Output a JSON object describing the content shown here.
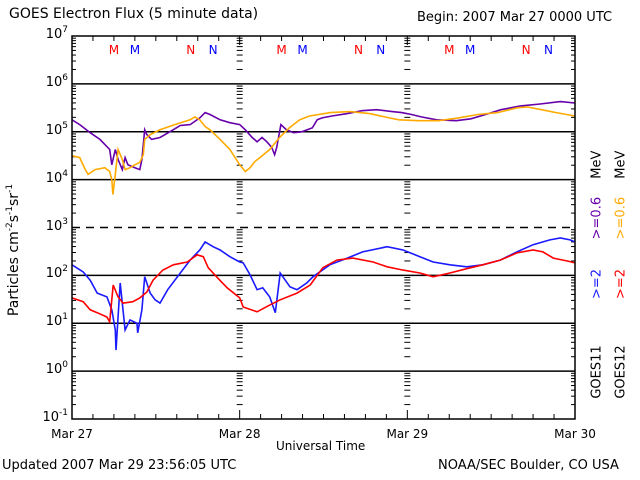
{
  "header": {
    "title": "GOES Electron Flux (5 minute data)",
    "begin": "Begin: 2007 Mar 27 0000 UTC"
  },
  "footer": {
    "updated": "Updated 2007 Mar 29 23:56:05 UTC",
    "credit": "NOAA/SEC Boulder, CO USA"
  },
  "colors": {
    "goes11_high": "#1a1aff",
    "goes12_high": "#ff0000",
    "goes11_low": "#6600aa",
    "goes12_low": "#ffaa00",
    "marker_red": "#ff0000",
    "marker_blue": "#0000ff"
  },
  "chart_data": {
    "type": "line",
    "title": "GOES Electron Flux (5 minute data)",
    "xlabel": "Universal Time",
    "ylabel_parts": [
      "Particles cm",
      "-2",
      "s",
      "-1",
      "sr",
      "-1"
    ],
    "x_units": "hours since 2007 Mar 27 0000 UTC",
    "xlim": [
      0,
      72
    ],
    "x_ticks": [
      {
        "value": 0,
        "label": "Mar 27"
      },
      {
        "value": 24,
        "label": "Mar 28"
      },
      {
        "value": 48,
        "label": "Mar 29"
      },
      {
        "value": 72,
        "label": "Mar 30"
      }
    ],
    "x_minor_step_hours": 3,
    "y_scale": "log",
    "ylim_log10": [
      -1,
      7
    ],
    "y_ticks": [
      {
        "exp": 7,
        "base": "10",
        "sup": "7"
      },
      {
        "exp": 6,
        "base": "10",
        "sup": "6"
      },
      {
        "exp": 5,
        "base": "10",
        "sup": "5"
      },
      {
        "exp": 4,
        "base": "10",
        "sup": "4"
      },
      {
        "exp": 3,
        "base": "10",
        "sup": "3"
      },
      {
        "exp": 2,
        "base": "10",
        "sup": "2"
      },
      {
        "exp": 1,
        "base": "10",
        "sup": "1"
      },
      {
        "exp": 0,
        "base": "10",
        "sup": "0"
      },
      {
        "exp": -1,
        "base": "10",
        "sup": "-1"
      }
    ],
    "grid_solid_log10": [
      6,
      5,
      4,
      2,
      1,
      0
    ],
    "threshold_dashed_log10": 3,
    "markers": [
      {
        "hour": 6.0,
        "label": "M",
        "color": "red"
      },
      {
        "hour": 9.0,
        "label": "M",
        "color": "blue"
      },
      {
        "hour": 17.0,
        "label": "N",
        "color": "red"
      },
      {
        "hour": 20.2,
        "label": "N",
        "color": "blue"
      },
      {
        "hour": 30.0,
        "label": "M",
        "color": "red"
      },
      {
        "hour": 33.0,
        "label": "M",
        "color": "blue"
      },
      {
        "hour": 41.0,
        "label": "N",
        "color": "red"
      },
      {
        "hour": 44.2,
        "label": "N",
        "color": "blue"
      },
      {
        "hour": 54.0,
        "label": "M",
        "color": "red"
      },
      {
        "hour": 57.0,
        "label": "M",
        "color": "blue"
      },
      {
        "hour": 65.0,
        "label": "N",
        "color": "red"
      },
      {
        "hour": 68.2,
        "label": "N",
        "color": "blue"
      }
    ],
    "legend": {
      "placement": "right-vertical",
      "column1": {
        "satellite": "GOES11",
        "high": ">=2",
        "low": ">=0.6",
        "unit": "MeV"
      },
      "column2": {
        "satellite": "GOES12",
        "high": ">=2",
        "low": ">=0.6",
        "unit": "MeV"
      }
    },
    "series": [
      {
        "name": "GOES11 >=0.6 MeV",
        "color_key": "goes11_low",
        "points_log10": [
          [
            0,
            5.25
          ],
          [
            1.1,
            5.15
          ],
          [
            2.6,
            4.98
          ],
          [
            4.0,
            4.84
          ],
          [
            5.4,
            4.63
          ],
          [
            5.7,
            4.31
          ],
          [
            6.2,
            4.63
          ],
          [
            6.6,
            4.42
          ],
          [
            7.2,
            4.21
          ],
          [
            7.6,
            4.46
          ],
          [
            8.0,
            4.31
          ],
          [
            9.0,
            4.25
          ],
          [
            9.7,
            4.21
          ],
          [
            10.0,
            4.42
          ],
          [
            10.4,
            5.04
          ],
          [
            10.7,
            4.94
          ],
          [
            11.4,
            4.84
          ],
          [
            12.6,
            4.88
          ],
          [
            14.0,
            5.0
          ],
          [
            15.5,
            5.13
          ],
          [
            16.9,
            5.15
          ],
          [
            18.3,
            5.29
          ],
          [
            19.05,
            5.4
          ],
          [
            19.75,
            5.36
          ],
          [
            21.2,
            5.25
          ],
          [
            22.6,
            5.19
          ],
          [
            24.0,
            5.15
          ],
          [
            24.8,
            5.04
          ],
          [
            25.8,
            4.88
          ],
          [
            26.5,
            4.79
          ],
          [
            27.2,
            4.88
          ],
          [
            27.9,
            4.79
          ],
          [
            28.6,
            4.67
          ],
          [
            29.0,
            4.52
          ],
          [
            29.3,
            4.67
          ],
          [
            29.9,
            5.15
          ],
          [
            30.7,
            5.04
          ],
          [
            31.7,
            4.98
          ],
          [
            32.9,
            5.0
          ],
          [
            34.4,
            5.08
          ],
          [
            35.1,
            5.25
          ],
          [
            35.8,
            5.29
          ],
          [
            37.2,
            5.33
          ],
          [
            39.4,
            5.38
          ],
          [
            41.5,
            5.44
          ],
          [
            43.6,
            5.46
          ],
          [
            45.8,
            5.42
          ],
          [
            47.2,
            5.4
          ],
          [
            48.6,
            5.36
          ],
          [
            50.0,
            5.31
          ],
          [
            52.2,
            5.25
          ],
          [
            55.0,
            5.23
          ],
          [
            57.1,
            5.27
          ],
          [
            59.2,
            5.36
          ],
          [
            61.4,
            5.46
          ],
          [
            64.2,
            5.54
          ],
          [
            67.0,
            5.58
          ],
          [
            69.9,
            5.63
          ],
          [
            72,
            5.6
          ]
        ]
      },
      {
        "name": "GOES12 >=0.6 MeV",
        "color_key": "goes12_low",
        "points_log10": [
          [
            0,
            4.5
          ],
          [
            1.1,
            4.46
          ],
          [
            1.9,
            4.21
          ],
          [
            2.3,
            4.11
          ],
          [
            3.3,
            4.21
          ],
          [
            4.7,
            4.25
          ],
          [
            5.4,
            4.17
          ],
          [
            5.7,
            4.0
          ],
          [
            5.85,
            3.69
          ],
          [
            6.2,
            4.11
          ],
          [
            6.6,
            4.63
          ],
          [
            7.2,
            4.42
          ],
          [
            7.6,
            4.21
          ],
          [
            8.3,
            4.25
          ],
          [
            9.0,
            4.31
          ],
          [
            9.7,
            4.36
          ],
          [
            10.2,
            4.52
          ],
          [
            10.4,
            4.84
          ],
          [
            11.2,
            4.94
          ],
          [
            12.6,
            5.04
          ],
          [
            14.7,
            5.15
          ],
          [
            16.9,
            5.25
          ],
          [
            17.6,
            5.31
          ],
          [
            18.3,
            5.25
          ],
          [
            19.05,
            5.11
          ],
          [
            19.75,
            5.04
          ],
          [
            21.2,
            4.84
          ],
          [
            22.6,
            4.63
          ],
          [
            24.0,
            4.31
          ],
          [
            24.8,
            4.17
          ],
          [
            25.5,
            4.25
          ],
          [
            26.2,
            4.38
          ],
          [
            26.9,
            4.46
          ],
          [
            28.3,
            4.63
          ],
          [
            29.7,
            4.88
          ],
          [
            31.1,
            5.08
          ],
          [
            32.6,
            5.25
          ],
          [
            34.0,
            5.33
          ],
          [
            37.0,
            5.4
          ],
          [
            39.8,
            5.42
          ],
          [
            42.6,
            5.38
          ],
          [
            45.4,
            5.29
          ],
          [
            46.8,
            5.25
          ],
          [
            49.6,
            5.23
          ],
          [
            52.5,
            5.23
          ],
          [
            55.3,
            5.29
          ],
          [
            58.1,
            5.36
          ],
          [
            60.9,
            5.4
          ],
          [
            63.7,
            5.5
          ],
          [
            65.1,
            5.52
          ],
          [
            67.2,
            5.46
          ],
          [
            69.3,
            5.4
          ],
          [
            72,
            5.33
          ]
        ]
      },
      {
        "name": "GOES11 >=2 MeV",
        "color_key": "goes11_high",
        "points_log10": [
          [
            0,
            2.22
          ],
          [
            1.6,
            2.07
          ],
          [
            2.6,
            1.9
          ],
          [
            3.6,
            1.63
          ],
          [
            5.0,
            1.55
          ],
          [
            5.7,
            1.28
          ],
          [
            6.2,
            0.86
          ],
          [
            6.3,
            0.44
          ],
          [
            6.9,
            1.84
          ],
          [
            7.6,
            0.86
          ],
          [
            8.3,
            1.07
          ],
          [
            9.3,
            1.0
          ],
          [
            9.4,
            0.8
          ],
          [
            10.0,
            1.28
          ],
          [
            10.4,
            1.97
          ],
          [
            11.2,
            1.63
          ],
          [
            11.9,
            1.49
          ],
          [
            12.6,
            1.42
          ],
          [
            13.7,
            1.7
          ],
          [
            15.5,
            2.05
          ],
          [
            16.9,
            2.32
          ],
          [
            18.3,
            2.53
          ],
          [
            19.05,
            2.7
          ],
          [
            20.2,
            2.6
          ],
          [
            21.2,
            2.53
          ],
          [
            22.6,
            2.39
          ],
          [
            24.0,
            2.28
          ],
          [
            24.5,
            2.26
          ],
          [
            25.5,
            2.01
          ],
          [
            26.5,
            1.7
          ],
          [
            27.3,
            1.74
          ],
          [
            28.3,
            1.55
          ],
          [
            29.1,
            1.22
          ],
          [
            29.8,
            2.05
          ],
          [
            31.2,
            1.76
          ],
          [
            32.2,
            1.7
          ],
          [
            33.6,
            1.84
          ],
          [
            34.5,
            1.97
          ],
          [
            36.9,
            2.22
          ],
          [
            39.4,
            2.36
          ],
          [
            41.6,
            2.49
          ],
          [
            45.1,
            2.6
          ],
          [
            47.4,
            2.53
          ],
          [
            49.8,
            2.39
          ],
          [
            51.7,
            2.28
          ],
          [
            54.1,
            2.22
          ],
          [
            56.5,
            2.18
          ],
          [
            58.8,
            2.22
          ],
          [
            61.3,
            2.32
          ],
          [
            63.7,
            2.49
          ],
          [
            66.0,
            2.64
          ],
          [
            68.4,
            2.74
          ],
          [
            69.9,
            2.78
          ],
          [
            71.3,
            2.74
          ],
          [
            72,
            2.7
          ]
        ]
      },
      {
        "name": "GOES12 >=2 MeV",
        "color_key": "goes12_high",
        "points_log10": [
          [
            0,
            1.53
          ],
          [
            1.6,
            1.45
          ],
          [
            2.6,
            1.28
          ],
          [
            3.6,
            1.22
          ],
          [
            5.0,
            1.13
          ],
          [
            5.4,
            1.03
          ],
          [
            5.9,
            1.8
          ],
          [
            6.6,
            1.55
          ],
          [
            7.3,
            1.42
          ],
          [
            8.7,
            1.45
          ],
          [
            9.7,
            1.53
          ],
          [
            10.7,
            1.65
          ],
          [
            11.6,
            1.9
          ],
          [
            13.0,
            2.11
          ],
          [
            14.5,
            2.22
          ],
          [
            16.5,
            2.28
          ],
          [
            17.9,
            2.43
          ],
          [
            18.8,
            2.39
          ],
          [
            19.5,
            2.16
          ],
          [
            20.7,
            1.97
          ],
          [
            22.2,
            1.74
          ],
          [
            24.0,
            1.53
          ],
          [
            24.5,
            1.34
          ],
          [
            26.5,
            1.24
          ],
          [
            28.3,
            1.38
          ],
          [
            29.8,
            1.49
          ],
          [
            32.2,
            1.63
          ],
          [
            34.1,
            1.8
          ],
          [
            35.9,
            2.16
          ],
          [
            37.9,
            2.32
          ],
          [
            40.2,
            2.36
          ],
          [
            43.1,
            2.28
          ],
          [
            45.1,
            2.18
          ],
          [
            47.4,
            2.11
          ],
          [
            49.8,
            2.05
          ],
          [
            51.7,
            1.97
          ],
          [
            54.1,
            2.05
          ],
          [
            56.5,
            2.14
          ],
          [
            58.8,
            2.22
          ],
          [
            61.3,
            2.32
          ],
          [
            63.7,
            2.47
          ],
          [
            66.0,
            2.53
          ],
          [
            67.4,
            2.49
          ],
          [
            68.9,
            2.36
          ],
          [
            70.9,
            2.3
          ],
          [
            72,
            2.26
          ]
        ]
      }
    ]
  }
}
